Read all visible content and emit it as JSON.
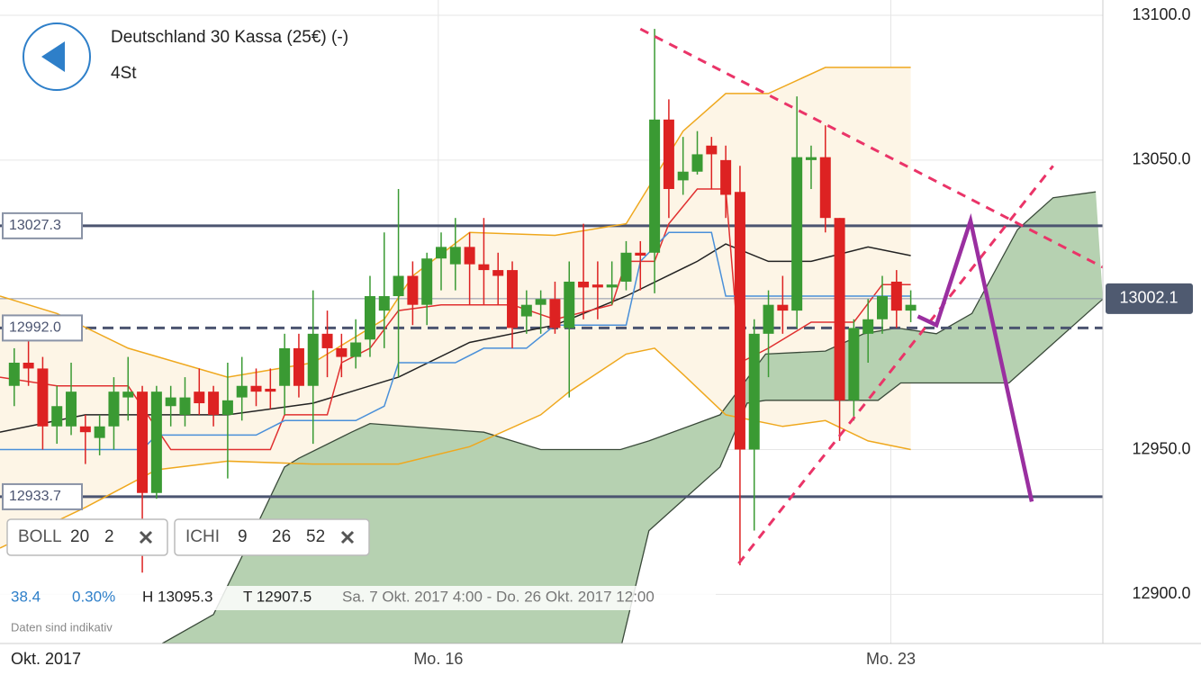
{
  "chart_data": {
    "type": "candlestick",
    "title": "Deutschland 30 Kassa (25€) (-)",
    "subtitle": "4St",
    "up_color": "#3a9a33",
    "down_color": "#dd2222",
    "xlim": [
      -1,
      76.5
    ],
    "ylim": [
      12883,
      13105.3
    ],
    "xticks": [
      {
        "value": 29.8,
        "label": "Mo. 16"
      },
      {
        "value": 61.6,
        "label": "Mo. 23"
      }
    ],
    "x_period_label": "Okt. 2017",
    "yticks": [
      {
        "value": 12900,
        "label": "12900.0"
      },
      {
        "value": 12950,
        "label": "12950.0"
      },
      {
        "value": 13050,
        "label": "13050.0"
      },
      {
        "value": 13100,
        "label": "13100.0"
      }
    ],
    "grid": true,
    "open": [
      12972,
      12980,
      12978,
      12958,
      12958,
      12958,
      12954,
      12958,
      12968,
      12970,
      12935,
      12965,
      12962,
      12970,
      12970,
      12962,
      12968,
      12972,
      12971,
      12972,
      12985,
      12972,
      12990,
      12985,
      12982,
      12988,
      12998,
      13003,
      13010,
      13000,
      13016,
      13014,
      13020,
      13014,
      13012,
      13012,
      12996,
      13000,
      13002,
      12992,
      13008,
      13007,
      13006,
      13008,
      13018,
      13018,
      13064,
      13043,
      13046,
      13055,
      13050,
      13039,
      12950,
      12990,
      13000,
      12998,
      13050,
      13051,
      13030,
      12967,
      12990,
      12995,
      13008,
      12998
    ],
    "high": [
      12985,
      12990,
      12982,
      12972,
      12980,
      12962,
      12962,
      12975,
      12982,
      12972,
      12972,
      12972,
      12975,
      12978,
      12972,
      12980,
      12982,
      12978,
      12978,
      12990,
      12990,
      13005,
      12998,
      12990,
      12995,
      13010,
      13025,
      13040,
      13015,
      13018,
      13025,
      13030,
      13025,
      13030,
      13018,
      13015,
      13005,
      13005,
      13008,
      13015,
      13028,
      13015,
      13015,
      13022,
      13022,
      13095.3,
      13071,
      13058,
      13060,
      13058,
      13055,
      13048,
      12995,
      13005,
      13010,
      13072,
      13055,
      13062,
      13030,
      12995,
      13002,
      13010,
      13012,
      13005
    ],
    "low": [
      12965,
      12972,
      12950,
      12952,
      12955,
      12945,
      12948,
      12950,
      12960,
      12907.5,
      12933,
      12958,
      12958,
      12962,
      12958,
      12940,
      12960,
      12965,
      12964,
      12962,
      12968,
      12952,
      12975,
      12975,
      12978,
      12982,
      12985,
      12975,
      12993,
      12993,
      13005,
      13005,
      13000,
      13000,
      13000,
      12985,
      12990,
      12990,
      12990,
      12968,
      12995,
      12995,
      13000,
      13005,
      13005,
      13004,
      13030,
      13038,
      13045,
      13040,
      13030,
      12910,
      12922,
      12975,
      12990,
      12992,
      13040,
      13025,
      12953,
      12960,
      12980,
      12990,
      12992,
      12994
    ],
    "close": [
      12980,
      12978,
      12958,
      12965,
      12970,
      12956,
      12958,
      12970,
      12970,
      12935,
      12970,
      12968,
      12968,
      12966,
      12962,
      12967,
      12972,
      12970,
      12970,
      12985,
      12972,
      12990,
      12985,
      12982,
      12987,
      13003,
      13003,
      13010,
      13000,
      13016,
      13020,
      13020,
      13014,
      13012,
      13010,
      12992,
      13000,
      13002,
      12992,
      13008,
      13006,
      13006,
      13007,
      13018,
      13017,
      13064,
      13040,
      13046,
      13052,
      13052,
      13038,
      12950,
      12990,
      13000,
      12998,
      13051,
      13051,
      13030,
      12967,
      12992,
      12995,
      13003,
      12998,
      13000
    ],
    "bollinger": {
      "color": "#efa81e",
      "middle_color": "#222222",
      "fill": "#fdf5e6",
      "upper": {
        "x": [
          -1,
          3,
          8,
          15,
          21,
          26,
          28,
          32,
          38,
          43,
          47,
          50,
          53,
          57,
          63
        ],
        "values": [
          13003,
          12997,
          12985,
          12975,
          12980,
          12995,
          13010,
          13025,
          13024,
          13028,
          13060,
          13073,
          13073,
          13082,
          13082
        ]
      },
      "middle": {
        "x": [
          -1,
          5,
          15,
          21,
          27,
          32,
          38,
          43,
          48,
          50,
          53,
          56,
          60,
          63
        ],
        "values": [
          12956,
          12962,
          12962,
          12966,
          12975,
          12987,
          12993,
          13003,
          13015,
          13021,
          13015,
          13015,
          13020,
          13017
        ]
      },
      "lower": {
        "x": [
          -1,
          5,
          10,
          15,
          21,
          27,
          32,
          37,
          39,
          43,
          45,
          47,
          50,
          54,
          57,
          60,
          63
        ],
        "values": [
          12916,
          12930,
          12943,
          12946,
          12945,
          12945,
          12951,
          12962,
          12970,
          12983,
          12985,
          12976,
          12962,
          12958,
          12960,
          12953,
          12950
        ]
      }
    },
    "ichimoku": {
      "tenkan_color": "#e03030",
      "kijun_color": "#4a90d9",
      "cloud_fill": "#b6d1b1",
      "cloud_line": "#3a4a3a",
      "tenkan": {
        "x": [
          -1,
          3,
          8,
          11,
          18,
          19,
          22,
          23,
          25,
          27,
          30,
          35,
          38,
          42,
          43,
          45,
          46,
          48,
          50,
          51,
          53,
          56,
          59,
          61,
          63
        ],
        "values": [
          12975,
          12972,
          12972,
          12950,
          12950,
          12962,
          12962,
          12980,
          12985,
          12998,
          13000,
          13000,
          12995,
          13000,
          13015,
          13015,
          13028,
          13040,
          13040,
          12980,
          12985,
          12994,
          12994,
          13007,
          13007
        ]
      },
      "kijun": {
        "x": [
          -1,
          9,
          10,
          17,
          19,
          24,
          26,
          27,
          31,
          33,
          36,
          38,
          43,
          44,
          46,
          49,
          50,
          63
        ],
        "values": [
          12950,
          12950,
          12955,
          12955,
          12960,
          12960,
          12965,
          12980,
          12980,
          12985,
          12985,
          12993,
          12993,
          13015,
          13025,
          13025,
          13003,
          13003
        ]
      },
      "span_a": {
        "x": [
          10.4,
          14,
          16,
          19,
          20,
          23.7,
          25,
          33,
          35,
          37,
          42.6,
          44.6,
          49.6,
          52.8,
          57,
          59.7,
          62,
          64.8,
          67.3,
          70.5,
          73,
          76
        ],
        "values": [
          12883,
          12893,
          12913,
          12944,
          12947,
          12956,
          12959,
          12956,
          12953,
          12950,
          12950,
          12953,
          12962,
          12983,
          12984,
          12990,
          12992,
          12990,
          12997,
          13026,
          13037,
          13039
        ]
      },
      "span_b": {
        "x": [
          10.4,
          42.7,
          44.6,
          49.6,
          51.5,
          52.8,
          60.7,
          62.3,
          69.9,
          76.5
        ],
        "values": [
          12883,
          12883,
          12922,
          12944,
          12966,
          12967,
          12967,
          12973,
          12973,
          13002
        ]
      }
    },
    "levels": [
      {
        "value": 13027.3,
        "label": "13027.3",
        "style": "solid",
        "side": "left",
        "color": "#4b5470"
      },
      {
        "value": 12992.0,
        "label": "12992.0",
        "style": "dashed",
        "side": "left",
        "color": "#4b5470"
      },
      {
        "value": 12933.7,
        "label": "12933.7",
        "style": "solid",
        "side": "left",
        "color": "#4b5470"
      },
      {
        "value": 13002.1,
        "label": "13002.1",
        "style": "thin",
        "side": "right",
        "color": "#8a93a6"
      }
    ],
    "drawings": [
      {
        "dash": true,
        "color": "#ea3468",
        "x": [
          44,
          76.5
        ],
        "values": [
          13095.3,
          13013
        ]
      },
      {
        "dash": true,
        "color": "#ea3468",
        "x": [
          50.9,
          73
        ],
        "values": [
          12910.6,
          13048
        ]
      },
      {
        "dash": false,
        "color": "#9a2fa0",
        "x": [
          63.5,
          64.8,
          67.2,
          71.5
        ],
        "values": [
          12996,
          12993,
          13029,
          12932
        ]
      }
    ],
    "indicators": [
      {
        "name": "BOLL",
        "params": [
          20,
          2
        ]
      },
      {
        "name": "ICHI",
        "params": [
          9,
          26,
          52
        ]
      }
    ],
    "info": {
      "change": "38.4",
      "change_pct": "0.30%",
      "high": "H 13095.3",
      "low": "T 12907.5",
      "range": "Sa. 7 Okt. 2017 4:00 - Do. 26 Okt. 2017 12:00",
      "note": "Daten sind indikativ"
    }
  }
}
